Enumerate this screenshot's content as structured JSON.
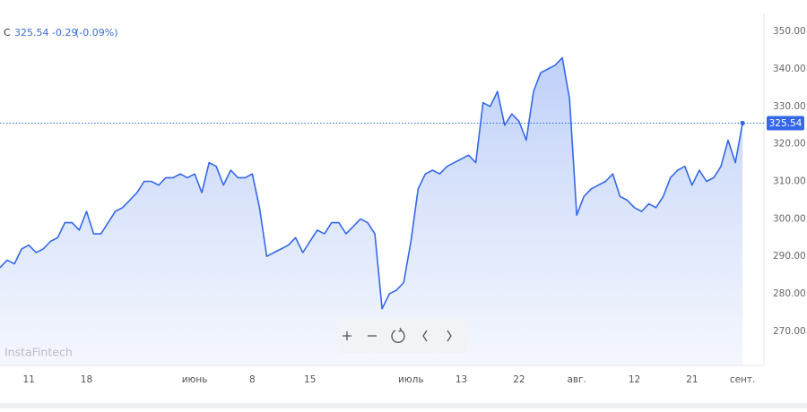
{
  "header": {
    "symbol": "C",
    "price": "325.54",
    "change": "-0.29",
    "change_percent": "(-0.09%)"
  },
  "watermark": "InstaFintech",
  "chart_data": {
    "type": "area",
    "categories": [
      null,
      null,
      null,
      null,
      "11",
      null,
      null,
      null,
      null,
      null,
      null,
      null,
      "18",
      null,
      null,
      null,
      null,
      null,
      null,
      null,
      null,
      null,
      null,
      null,
      null,
      null,
      null,
      "июнь",
      null,
      null,
      null,
      null,
      null,
      null,
      null,
      "8",
      null,
      null,
      null,
      null,
      null,
      null,
      null,
      "15",
      null,
      null,
      null,
      null,
      null,
      null,
      null,
      null,
      null,
      null,
      null,
      null,
      null,
      "июль",
      null,
      null,
      null,
      null,
      null,
      null,
      "13",
      null,
      null,
      null,
      null,
      null,
      null,
      null,
      "22",
      null,
      null,
      null,
      null,
      null,
      null,
      null,
      "авг.",
      null,
      null,
      null,
      null,
      null,
      null,
      null,
      "12",
      null,
      null,
      null,
      null,
      null,
      null,
      null,
      "21",
      null,
      null,
      null,
      null,
      null,
      null,
      "сент."
    ],
    "series": [
      {
        "color": "#3568e8",
        "values": [
          287,
          289,
          288,
          292,
          293,
          291,
          292,
          294,
          295,
          299,
          299,
          297,
          302,
          296,
          296,
          299,
          302,
          303,
          305,
          307,
          310,
          310,
          309,
          311,
          311,
          312,
          311,
          312,
          307,
          315,
          314,
          309,
          313,
          311,
          311,
          312,
          303,
          290,
          291,
          292,
          293,
          295,
          291,
          294,
          297,
          296,
          299,
          299,
          296,
          298,
          300,
          299,
          296,
          276,
          280,
          281,
          283,
          294,
          308,
          312,
          313,
          312,
          314,
          315,
          316,
          317,
          315,
          331,
          330,
          334,
          325,
          328,
          326,
          321,
          334,
          339,
          340,
          341,
          343,
          332,
          301,
          306,
          308,
          309,
          310,
          312,
          306,
          305,
          303,
          302,
          304,
          303,
          306,
          311,
          313,
          314,
          309,
          313,
          310,
          311,
          314,
          321,
          315,
          325.54
        ]
      }
    ],
    "price_label": "325.54",
    "ylim": [
      260.9,
      358.4
    ],
    "yticks": [
      {
        "value": 270,
        "label": "270.00"
      },
      {
        "value": 280,
        "label": "280.00"
      },
      {
        "value": 290,
        "label": "290.00"
      },
      {
        "value": 300,
        "label": "300.00"
      },
      {
        "value": 310,
        "label": "310.00"
      },
      {
        "value": 320,
        "label": "320.00"
      },
      {
        "value": 330,
        "label": "330.00"
      },
      {
        "value": 340,
        "label": "340.00"
      },
      {
        "value": 350,
        "label": "350.00"
      }
    ],
    "grid": false
  }
}
